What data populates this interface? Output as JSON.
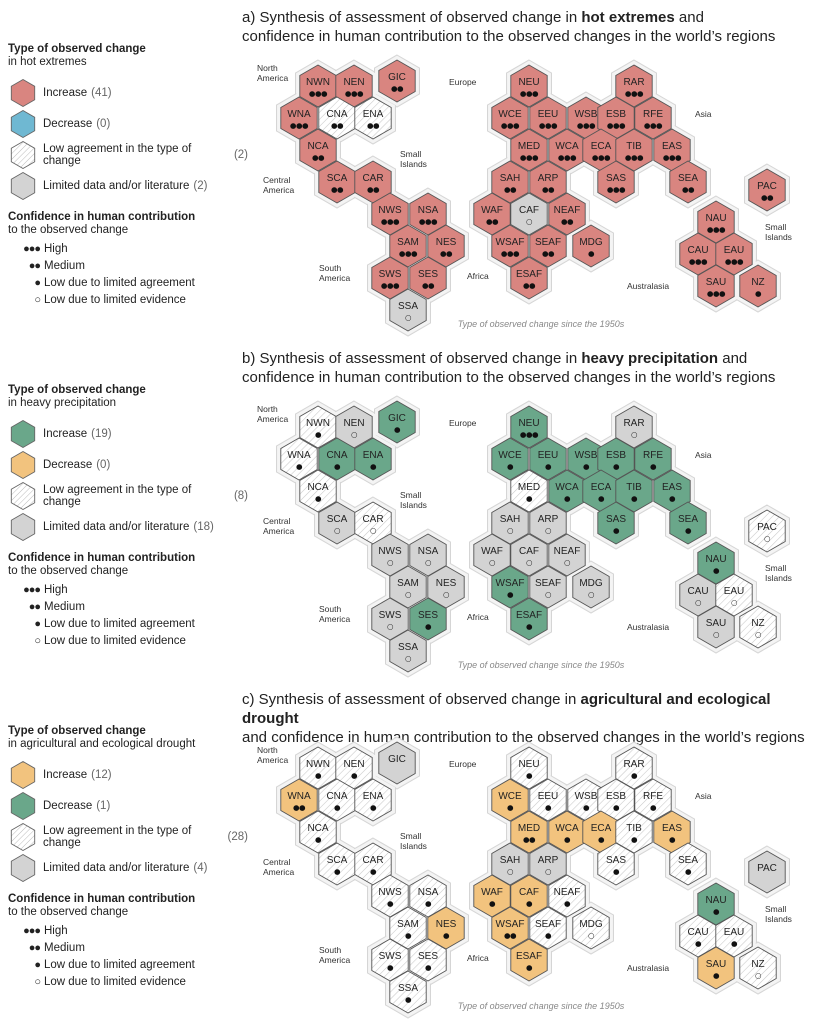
{
  "colors": {
    "increase": "#d98580",
    "decrease_blue": "#6fb8d2",
    "increase_green": "#6aa78a",
    "drought_orange": "#f2c37e",
    "limited": "#d3d3d3",
    "low_agreement": "#ffffff",
    "stroke": "#555555"
  },
  "panels": [
    {
      "title_prefix": "a) Synthesis of assessment of observed change in ",
      "title_bold": "hot extremes",
      "title_suffix": " and",
      "title_line2": "confidence in human contribution to the observed changes in the world’s regions",
      "legend": {
        "heading": "Type of observed change",
        "subheading": "in hot extremes",
        "items": [
          {
            "label": "Increase",
            "count": "(41)",
            "style": "increase"
          },
          {
            "label": "Decrease",
            "count": "(0)",
            "style": "decrease_blue"
          },
          {
            "label": "Low agreement in the type of change",
            "count": "(2)",
            "style": "low_agreement"
          },
          {
            "label": "Limited data and/or literature",
            "count": "(2)",
            "style": "limited"
          }
        ]
      },
      "footer": "Type of observed change since the 1950s",
      "hexes": {
        "NWN": [
          "increase",
          "●●●"
        ],
        "NEN": [
          "increase",
          "●●●"
        ],
        "GIC": [
          "increase",
          "●●"
        ],
        "WNA": [
          "increase",
          "●●●"
        ],
        "CNA": [
          "low_agreement",
          "●●"
        ],
        "ENA": [
          "low_agreement",
          "●●"
        ],
        "NCA": [
          "increase",
          "●●"
        ],
        "SCA": [
          "increase",
          "●●"
        ],
        "CAR": [
          "increase",
          "●●"
        ],
        "NWS": [
          "increase",
          "●●●"
        ],
        "NSA": [
          "increase",
          "●●●"
        ],
        "SAM": [
          "increase",
          "●●●"
        ],
        "NES": [
          "increase",
          "●●"
        ],
        "SWS": [
          "increase",
          "●●●"
        ],
        "SES": [
          "increase",
          "●●"
        ],
        "SSA": [
          "limited",
          "○"
        ],
        "NEU": [
          "increase",
          "●●●"
        ],
        "RAR": [
          "increase",
          "●●●"
        ],
        "WCE": [
          "increase",
          "●●●"
        ],
        "EEU": [
          "increase",
          "●●●"
        ],
        "WSB": [
          "increase",
          "●●●"
        ],
        "ESB": [
          "increase",
          "●●●"
        ],
        "RFE": [
          "increase",
          "●●●"
        ],
        "MED": [
          "increase",
          "●●●"
        ],
        "WCA": [
          "increase",
          "●●●"
        ],
        "ECA": [
          "increase",
          "●●●"
        ],
        "TIB": [
          "increase",
          "●●●"
        ],
        "EAS": [
          "increase",
          "●●●"
        ],
        "SAH": [
          "increase",
          "●●"
        ],
        "ARP": [
          "increase",
          "●●"
        ],
        "SAS": [
          "increase",
          "●●●"
        ],
        "SEA": [
          "increase",
          "●●"
        ],
        "WAF": [
          "increase",
          "●●"
        ],
        "CAF": [
          "limited",
          "○"
        ],
        "NEAF": [
          "increase",
          "●●"
        ],
        "WSAF": [
          "increase",
          "●●●"
        ],
        "SEAF": [
          "increase",
          "●●"
        ],
        "MDG": [
          "increase",
          "●"
        ],
        "ESAF": [
          "increase",
          "●●"
        ],
        "PAC": [
          "increase",
          "●●"
        ],
        "NAU": [
          "increase",
          "●●●"
        ],
        "CAU": [
          "increase",
          "●●●"
        ],
        "EAU": [
          "increase",
          "●●●"
        ],
        "SAU": [
          "increase",
          "●●●"
        ],
        "NZ": [
          "increase",
          "●"
        ]
      }
    },
    {
      "title_prefix": "b) Synthesis of assessment of observed change in ",
      "title_bold": "heavy precipitation",
      "title_suffix": " and",
      "title_line2": "confidence in human contribution to the observed changes in the world’s regions",
      "legend": {
        "heading": "Type of observed change",
        "subheading": "in heavy precipitation",
        "items": [
          {
            "label": "Increase",
            "count": "(19)",
            "style": "increase_green"
          },
          {
            "label": "Decrease",
            "count": "(0)",
            "style": "drought_orange"
          },
          {
            "label": "Low agreement in the type of change",
            "count": "(8)",
            "style": "low_agreement"
          },
          {
            "label": "Limited data and/or literature",
            "count": "(18)",
            "style": "limited"
          }
        ]
      },
      "footer": "Type of observed change since the 1950s",
      "hexes": {
        "NWN": [
          "low_agreement",
          "●"
        ],
        "NEN": [
          "limited",
          "○"
        ],
        "GIC": [
          "increase_green",
          "●"
        ],
        "WNA": [
          "low_agreement",
          "●"
        ],
        "CNA": [
          "increase_green",
          "●"
        ],
        "ENA": [
          "increase_green",
          "●"
        ],
        "NCA": [
          "low_agreement",
          "●"
        ],
        "SCA": [
          "limited",
          "○"
        ],
        "CAR": [
          "low_agreement",
          "○"
        ],
        "NWS": [
          "limited",
          "○"
        ],
        "NSA": [
          "limited",
          "○"
        ],
        "SAM": [
          "limited",
          "○"
        ],
        "NES": [
          "limited",
          "○"
        ],
        "SWS": [
          "limited",
          "○"
        ],
        "SES": [
          "increase_green",
          "●"
        ],
        "SSA": [
          "limited",
          "○"
        ],
        "NEU": [
          "increase_green",
          "●●●"
        ],
        "RAR": [
          "limited",
          "○"
        ],
        "WCE": [
          "increase_green",
          "●"
        ],
        "EEU": [
          "increase_green",
          "●"
        ],
        "WSB": [
          "increase_green",
          "●"
        ],
        "ESB": [
          "increase_green",
          "●"
        ],
        "RFE": [
          "increase_green",
          "●"
        ],
        "MED": [
          "low_agreement",
          "●"
        ],
        "WCA": [
          "increase_green",
          "●"
        ],
        "ECA": [
          "increase_green",
          "●"
        ],
        "TIB": [
          "increase_green",
          "●"
        ],
        "EAS": [
          "increase_green",
          "●"
        ],
        "SAH": [
          "limited",
          "○"
        ],
        "ARP": [
          "limited",
          "○"
        ],
        "SAS": [
          "increase_green",
          "●"
        ],
        "SEA": [
          "increase_green",
          "●"
        ],
        "WAF": [
          "limited",
          "○"
        ],
        "CAF": [
          "limited",
          "○"
        ],
        "NEAF": [
          "limited",
          "○"
        ],
        "WSAF": [
          "increase_green",
          "●"
        ],
        "SEAF": [
          "limited",
          "○"
        ],
        "MDG": [
          "limited",
          "○"
        ],
        "ESAF": [
          "increase_green",
          "●"
        ],
        "PAC": [
          "low_agreement",
          "○"
        ],
        "NAU": [
          "increase_green",
          "●"
        ],
        "CAU": [
          "limited",
          "○"
        ],
        "EAU": [
          "low_agreement",
          "○"
        ],
        "SAU": [
          "limited",
          "○"
        ],
        "NZ": [
          "low_agreement",
          "○"
        ]
      }
    },
    {
      "title_prefix": "c) Synthesis of assessment of observed change in ",
      "title_bold": "agricultural and ecological drought",
      "title_suffix": "",
      "title_line2": "and confidence in human contribution to the observed changes in the world’s regions",
      "legend": {
        "heading": "Type of observed change",
        "subheading": "in agricultural and ecological drought",
        "items": [
          {
            "label": "Increase",
            "count": "(12)",
            "style": "drought_orange"
          },
          {
            "label": "Decrease",
            "count": "(1)",
            "style": "increase_green"
          },
          {
            "label": "Low agreement in the type of change",
            "count": "(28)",
            "style": "low_agreement"
          },
          {
            "label": "Limited data and/or literature",
            "count": "(4)",
            "style": "limited"
          }
        ]
      },
      "footer": "Type of observed change since the 1950s",
      "hexes": {
        "NWN": [
          "low_agreement",
          "●"
        ],
        "NEN": [
          "low_agreement",
          "●"
        ],
        "GIC": [
          "limited",
          ""
        ],
        "WNA": [
          "drought_orange",
          "●●"
        ],
        "CNA": [
          "low_agreement",
          "●"
        ],
        "ENA": [
          "low_agreement",
          "●"
        ],
        "NCA": [
          "low_agreement",
          "●"
        ],
        "SCA": [
          "low_agreement",
          "●"
        ],
        "CAR": [
          "low_agreement",
          "●"
        ],
        "NWS": [
          "low_agreement",
          "●"
        ],
        "NSA": [
          "low_agreement",
          "●"
        ],
        "SAM": [
          "low_agreement",
          "●"
        ],
        "NES": [
          "drought_orange",
          "●"
        ],
        "SWS": [
          "low_agreement",
          "●"
        ],
        "SES": [
          "low_agreement",
          "●"
        ],
        "SSA": [
          "low_agreement",
          "●"
        ],
        "NEU": [
          "low_agreement",
          "●"
        ],
        "RAR": [
          "low_agreement",
          "●"
        ],
        "WCE": [
          "drought_orange",
          "●"
        ],
        "EEU": [
          "low_agreement",
          "●"
        ],
        "WSB": [
          "low_agreement",
          "●"
        ],
        "ESB": [
          "low_agreement",
          "●"
        ],
        "RFE": [
          "low_agreement",
          "●"
        ],
        "MED": [
          "drought_orange",
          "●●"
        ],
        "WCA": [
          "drought_orange",
          "●"
        ],
        "ECA": [
          "drought_orange",
          "●"
        ],
        "TIB": [
          "low_agreement",
          "●"
        ],
        "EAS": [
          "drought_orange",
          "●"
        ],
        "SAH": [
          "limited",
          "○"
        ],
        "ARP": [
          "limited",
          "○"
        ],
        "SAS": [
          "low_agreement",
          "●"
        ],
        "SEA": [
          "low_agreement",
          "●"
        ],
        "WAF": [
          "drought_orange",
          "●"
        ],
        "CAF": [
          "drought_orange",
          "●"
        ],
        "NEAF": [
          "low_agreement",
          "●"
        ],
        "WSAF": [
          "drought_orange",
          "●●"
        ],
        "SEAF": [
          "low_agreement",
          "●"
        ],
        "MDG": [
          "low_agreement",
          "○"
        ],
        "ESAF": [
          "drought_orange",
          "●"
        ],
        "PAC": [
          "limited",
          ""
        ],
        "NAU": [
          "increase_green",
          "●"
        ],
        "CAU": [
          "low_agreement",
          "●"
        ],
        "EAU": [
          "low_agreement",
          "●"
        ],
        "SAU": [
          "drought_orange",
          "●"
        ],
        "NZ": [
          "low_agreement",
          "○"
        ]
      }
    }
  ],
  "confidence": {
    "title": "Confidence in human contribution",
    "subtitle": "to the observed change",
    "items": [
      {
        "sym": "●●●",
        "label": "High"
      },
      {
        "sym": "●●",
        "label": "Medium"
      },
      {
        "sym": "●",
        "label": "Low due to limited agreement"
      },
      {
        "sym": "○",
        "label": "Low due to limited evidence"
      }
    ]
  },
  "region_labels": {
    "north_america": "North\nAmerica",
    "central_america": "Central\nAmerica",
    "south_america": "South\nAmerica",
    "europe": "Europe",
    "asia": "Asia",
    "africa": "Africa",
    "australasia": "Australasia",
    "small_islands_1": "Small\nIslands",
    "small_islands_2": "Small\nIslands"
  }
}
